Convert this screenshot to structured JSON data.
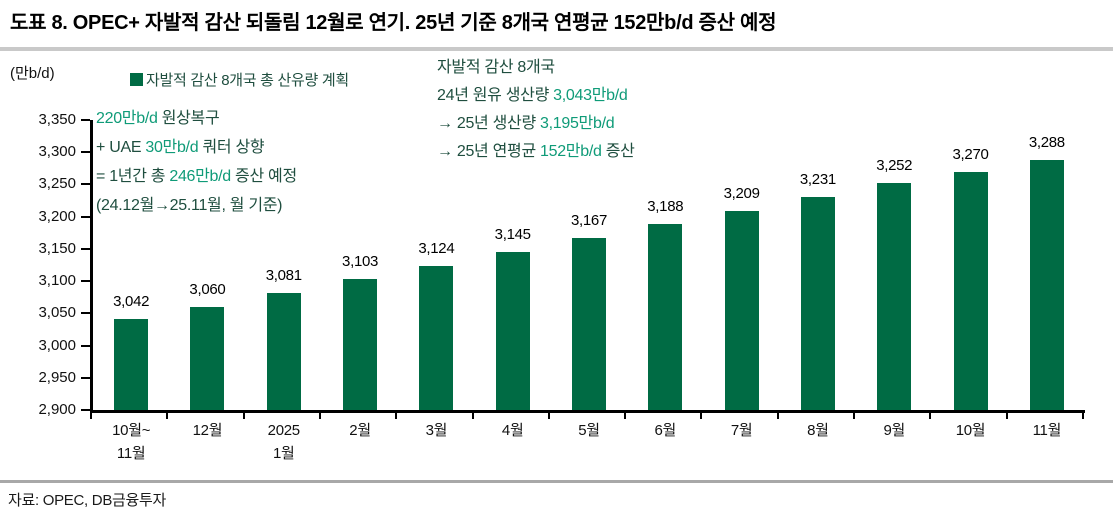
{
  "header": {
    "title": "도표 8. OPEC+ 자발적 감산 되돌림 12월로 연기. 25년 기준 8개국 연평균 152만b/d 증산 예정"
  },
  "legend": {
    "label": "자발적 감산 8개국 총 산유량 계획"
  },
  "annotations": {
    "left": {
      "lines": [
        {
          "pre": "",
          "hl": "220만b/d",
          "post": " 원상복구"
        },
        {
          "pre": "+ UAE ",
          "hl": "30만b/d",
          "post": " 쿼터 상향"
        },
        {
          "pre": "= 1년간 총 ",
          "hl": "246만b/d",
          "post": " 증산 예정"
        },
        {
          "pre": "(24.12월→25.11월, 월 기준)",
          "hl": "",
          "post": ""
        }
      ]
    },
    "right": {
      "lines": [
        {
          "pre": "자발적 감산 8개국",
          "hl": "",
          "post": ""
        },
        {
          "pre": "24년 원유 생산량 ",
          "hl": "3,043만b/d",
          "post": ""
        },
        {
          "pre": "→ 25년 생산량 ",
          "hl": "3,195만b/d",
          "post": ""
        },
        {
          "pre": "→ 25년 연평균 ",
          "hl": "152만b/d",
          "post": " 증산"
        }
      ]
    }
  },
  "chart_data": {
    "type": "bar",
    "title": "자발적 감산 8개국 총 산유량 계획",
    "unit_label": "(만b/d)",
    "categories": [
      "10월~11월",
      "12월",
      "2025 1월",
      "2월",
      "3월",
      "4월",
      "5월",
      "6월",
      "7월",
      "8월",
      "9월",
      "10월",
      "11월"
    ],
    "categories_lines": [
      [
        "10월~",
        "11월"
      ],
      [
        "12월"
      ],
      [
        "2025",
        "1월"
      ],
      [
        "2월"
      ],
      [
        "3월"
      ],
      [
        "4월"
      ],
      [
        "5월"
      ],
      [
        "6월"
      ],
      [
        "7월"
      ],
      [
        "8월"
      ],
      [
        "9월"
      ],
      [
        "10월"
      ],
      [
        "11월"
      ]
    ],
    "values": [
      3042,
      3060,
      3081,
      3103,
      3124,
      3145,
      3167,
      3188,
      3209,
      3231,
      3252,
      3270,
      3288
    ],
    "value_labels": [
      "3,042",
      "3,060",
      "3,081",
      "3,103",
      "3,124",
      "3,145",
      "3,167",
      "3,188",
      "3,209",
      "3,231",
      "3,252",
      "3,270",
      "3,288"
    ],
    "ylim": [
      2900,
      3350
    ],
    "yticks": [
      2900,
      2950,
      3000,
      3050,
      3100,
      3150,
      3200,
      3250,
      3300,
      3350
    ],
    "ytick_labels": [
      "2,900",
      "2,950",
      "3,000",
      "3,050",
      "3,100",
      "3,150",
      "3,200",
      "3,250",
      "3,300",
      "3,350"
    ],
    "grid": false,
    "legend_position": "top-left",
    "xlabel": "",
    "ylabel": "만b/d"
  },
  "footer": {
    "source": "자료: OPEC, DB금융투자"
  },
  "colors": {
    "bar_green": "#006B44",
    "highlight_teal": "#0F9B78",
    "annotation_dark": "#1F4E3F",
    "rule_gray": "#C9C9C9",
    "axis_black": "#000000"
  }
}
